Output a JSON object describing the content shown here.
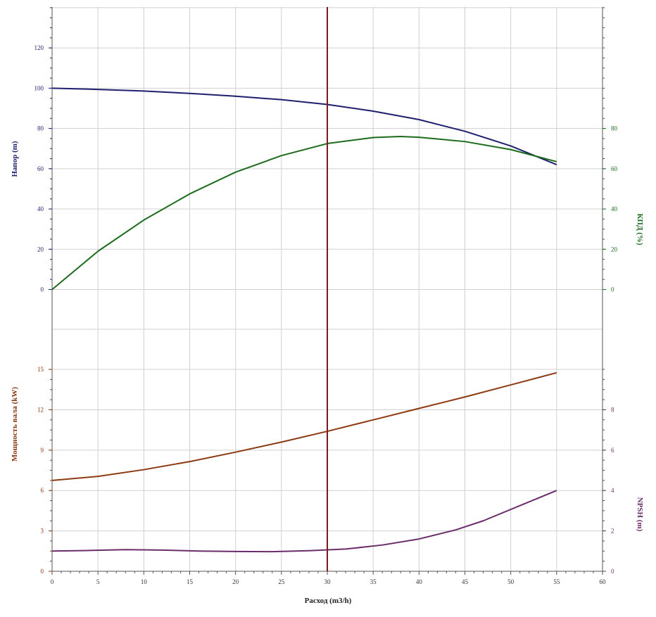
{
  "chart_data": {
    "type": "line",
    "xlabel": "Расход (m3/h)",
    "xlim": [
      0,
      60
    ],
    "x_ticks": [
      0,
      5,
      10,
      15,
      20,
      25,
      30,
      35,
      40,
      45,
      50,
      55,
      60
    ],
    "grid": true,
    "duty_point_x": 30,
    "colors": {
      "head": "#1f1f6e",
      "efficiency": "#1c6b1c",
      "power": "#8b3a12",
      "npsh": "#6a2d6a",
      "marker": "#7a1a1a",
      "grid": "#d0d0d0",
      "axis": "#555555"
    },
    "panels": [
      {
        "name": "upper",
        "left_axis": {
          "label": "Напор (m)",
          "range": [
            0,
            140
          ],
          "ticks": [
            0,
            20,
            40,
            60,
            80,
            100,
            120
          ],
          "color": "#1f1f6e"
        },
        "right_axis": {
          "label": "КПД (%)",
          "range": [
            0,
            140
          ],
          "ticks": [
            0,
            20,
            40,
            60,
            80
          ],
          "color": "#1c6b1c"
        },
        "series": [
          {
            "key": "head",
            "axis": "left",
            "points": [
              [
                0,
                100
              ],
              [
                5,
                99.4
              ],
              [
                10,
                98.6
              ],
              [
                15,
                97.4
              ],
              [
                20,
                96.0
              ],
              [
                25,
                94.3
              ],
              [
                30,
                91.9
              ],
              [
                35,
                88.6
              ],
              [
                40,
                84.4
              ],
              [
                45,
                78.6
              ],
              [
                50,
                71.3
              ],
              [
                55,
                62
              ]
            ]
          },
          {
            "key": "efficiency",
            "axis": "right",
            "points": [
              [
                0,
                0
              ],
              [
                5,
                19
              ],
              [
                10,
                34.5
              ],
              [
                15,
                47.5
              ],
              [
                20,
                58.3
              ],
              [
                25,
                66.5
              ],
              [
                30,
                72.5
              ],
              [
                35,
                75.5
              ],
              [
                38,
                76
              ],
              [
                40,
                75.6
              ],
              [
                45,
                73.5
              ],
              [
                50,
                69.5
              ],
              [
                55,
                63.5
              ]
            ]
          }
        ]
      },
      {
        "name": "lower",
        "left_axis": {
          "label": "Мощность вала (kW)",
          "range": [
            0,
            15
          ],
          "ticks": [
            0,
            3,
            6,
            9,
            12,
            15
          ],
          "color": "#8b3a12"
        },
        "right_axis": {
          "label": "NPSH (m)",
          "range": [
            0,
            10
          ],
          "ticks": [
            0,
            2,
            4,
            6,
            8
          ],
          "color": "#6a2d6a"
        },
        "series": [
          {
            "key": "power",
            "axis": "left",
            "points": [
              [
                0,
                6.75
              ],
              [
                5,
                7.05
              ],
              [
                10,
                7.55
              ],
              [
                15,
                8.15
              ],
              [
                20,
                8.85
              ],
              [
                25,
                9.6
              ],
              [
                30,
                10.4
              ],
              [
                35,
                11.25
              ],
              [
                40,
                12.1
              ],
              [
                45,
                12.95
              ],
              [
                50,
                13.85
              ],
              [
                55,
                14.75
              ]
            ]
          },
          {
            "key": "npsh",
            "axis": "right",
            "points": [
              [
                0,
                1.0
              ],
              [
                4,
                1.03
              ],
              [
                8,
                1.07
              ],
              [
                12,
                1.05
              ],
              [
                16,
                1.0
              ],
              [
                20,
                0.98
              ],
              [
                24,
                0.97
              ],
              [
                28,
                1.02
              ],
              [
                32,
                1.1
              ],
              [
                36,
                1.3
              ],
              [
                40,
                1.6
              ],
              [
                44,
                2.05
              ],
              [
                47,
                2.5
              ],
              [
                51,
                3.25
              ],
              [
                55,
                4.0
              ]
            ]
          }
        ]
      }
    ]
  }
}
